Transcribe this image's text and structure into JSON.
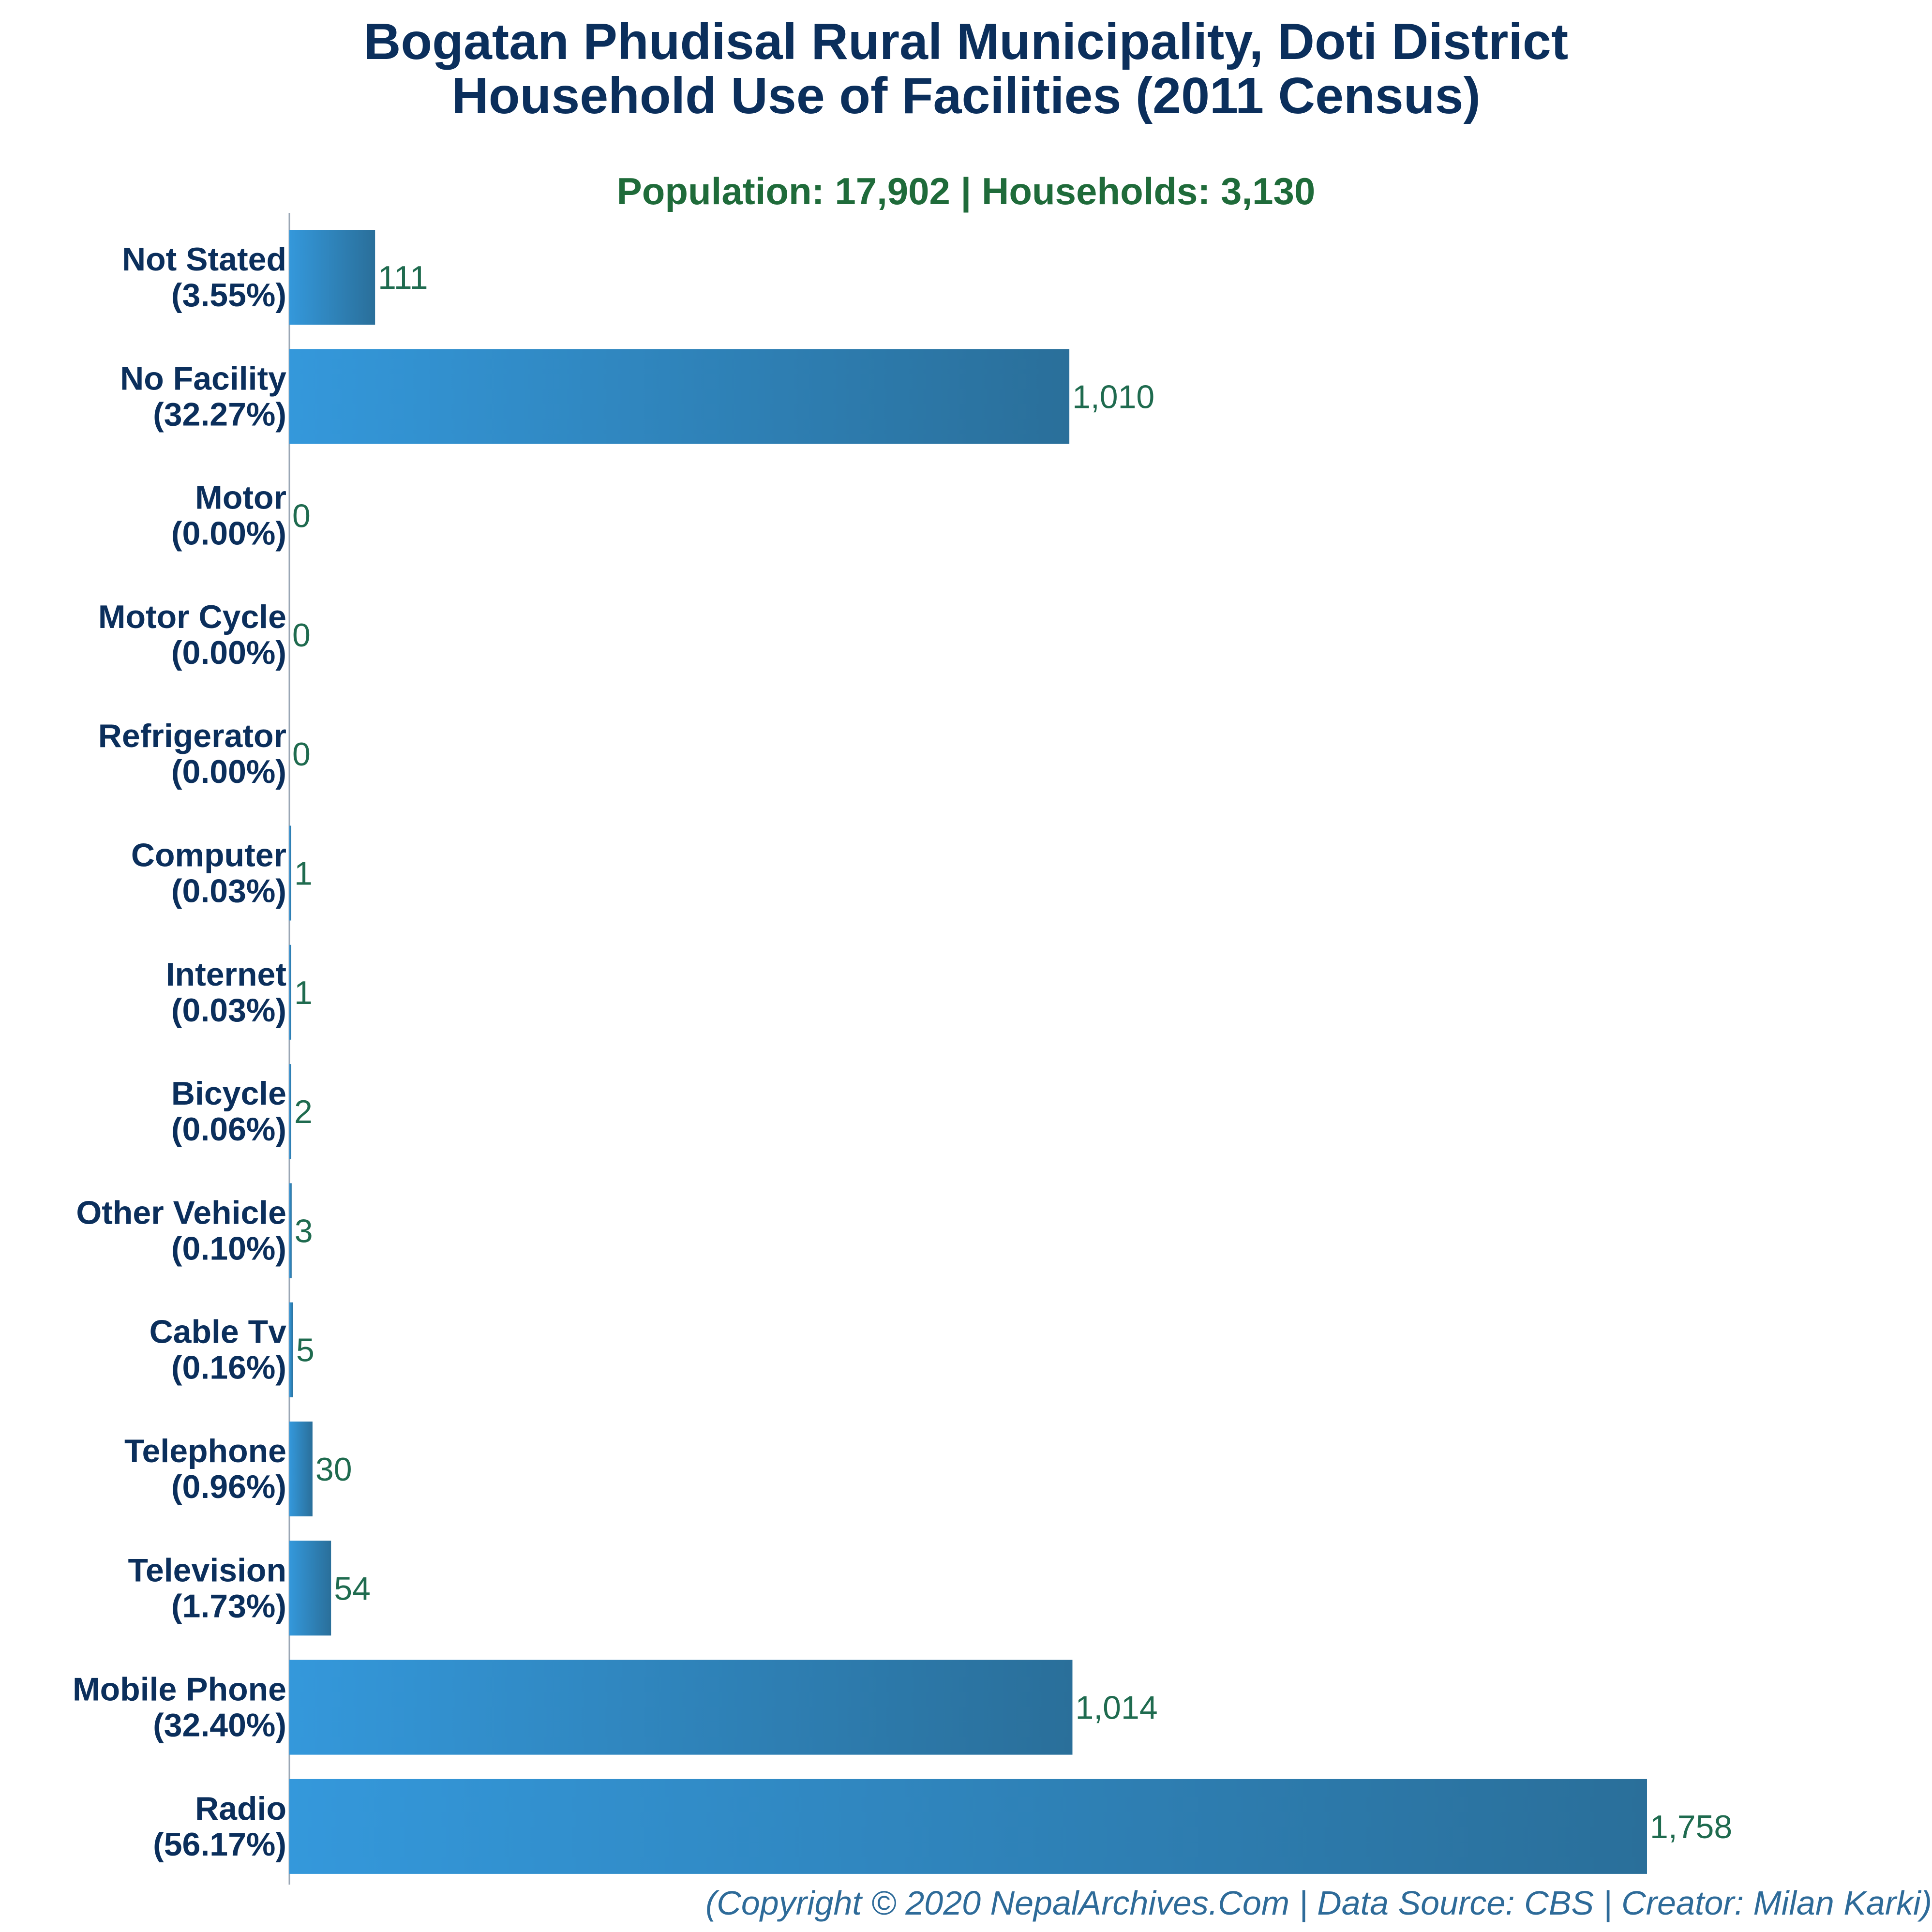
{
  "header": {
    "title_line1": "Bogatan Phudisal Rural Municipality, Doti District",
    "title_line2": "Household Use of Facilities (2011 Census)",
    "subtitle": "Population: 17,902 | Households: 3,130"
  },
  "footer": {
    "credit": "(Copyright © 2020 NepalArchives.Com | Data Source: CBS | Creator: Milan Karki)"
  },
  "colors": {
    "bar_light": "#3498db",
    "bar_dark": "#2a6f9a",
    "title": "#0b2f5c",
    "subtitle": "#1f6b3a",
    "value_label": "#1f6b4f"
  },
  "chart_data": {
    "type": "bar",
    "orientation": "horizontal",
    "categories": [
      "Not Stated",
      "No Facility",
      "Motor",
      "Motor Cycle",
      "Refrigerator",
      "Computer",
      "Internet",
      "Bicycle",
      "Other Vehicle",
      "Cable Tv",
      "Telephone",
      "Television",
      "Mobile Phone",
      "Radio"
    ],
    "percent_labels": [
      "(3.55%)",
      "(32.27%)",
      "(0.00%)",
      "(0.00%)",
      "(0.00%)",
      "(0.03%)",
      "(0.03%)",
      "(0.06%)",
      "(0.10%)",
      "(0.16%)",
      "(0.96%)",
      "(1.73%)",
      "(32.40%)",
      "(56.17%)"
    ],
    "values": [
      111,
      1010,
      0,
      0,
      0,
      1,
      1,
      2,
      3,
      5,
      30,
      54,
      1014,
      1758
    ],
    "value_labels": [
      "111",
      "1,010",
      "0",
      "0",
      "0",
      "1",
      "1",
      "2",
      "3",
      "5",
      "30",
      "54",
      "1,014",
      "1,758"
    ],
    "title": "Bogatan Phudisal Rural Municipality, Doti District Household Use of Facilities (2011 Census)",
    "xlabel": "",
    "ylabel": "",
    "xlim": [
      0,
      1758
    ],
    "grid": false,
    "legend": "none"
  }
}
